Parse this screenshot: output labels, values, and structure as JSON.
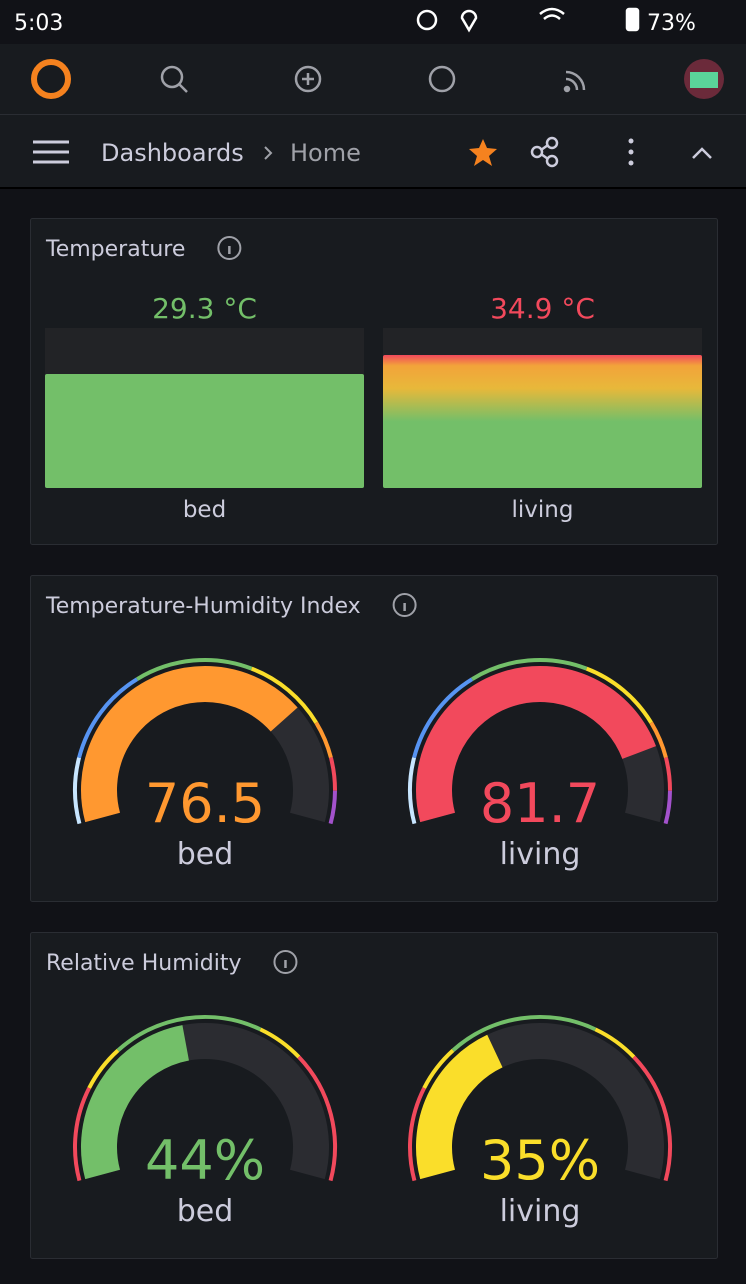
{
  "status_bar": {
    "time": "5:03",
    "battery": "73%"
  },
  "breadcrumb": {
    "parent": "Dashboards",
    "current": "Home"
  },
  "panels": [
    {
      "title": "Temperature",
      "items": [
        {
          "value": "29.3 °C",
          "label": "bed"
        },
        {
          "value": "34.9 °C",
          "label": "living"
        }
      ]
    },
    {
      "title": "Temperature-Humidity Index",
      "items": [
        {
          "value": "76.5",
          "label": "bed"
        },
        {
          "value": "81.7",
          "label": "living"
        }
      ]
    },
    {
      "title": "Relative Humidity",
      "items": [
        {
          "value": "44%",
          "label": "bed"
        },
        {
          "value": "35%",
          "label": "living"
        }
      ]
    }
  ]
}
